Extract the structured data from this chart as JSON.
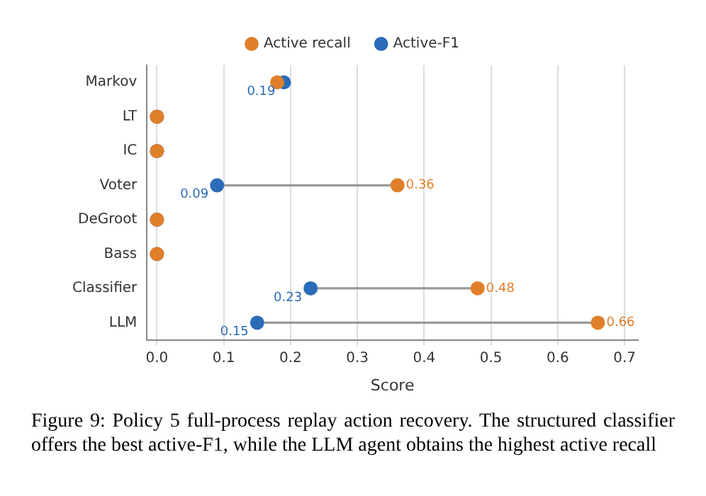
{
  "chart_data": {
    "type": "scatter",
    "orientation": "horizontal",
    "xlabel": "Score",
    "categories": [
      "Markov",
      "LT",
      "IC",
      "Voter",
      "DeGroot",
      "Bass",
      "Classifier",
      "LLM"
    ],
    "series": [
      {
        "name": "Active-F1",
        "color": "#2b6cb8",
        "values": [
          0.19,
          0,
          0,
          0.09,
          0,
          0,
          0.23,
          0.15
        ],
        "value_labels": [
          "0.19",
          null,
          null,
          "0.09",
          null,
          null,
          "0.23",
          "0.15"
        ]
      },
      {
        "name": "Active recall",
        "color": "#e07f2a",
        "values": [
          0.18,
          0,
          0,
          0.36,
          0,
          0,
          0.48,
          0.66
        ],
        "value_labels": [
          null,
          null,
          null,
          "0.36",
          null,
          null,
          "0.48",
          "0.66"
        ]
      }
    ],
    "xlim": [
      -0.015,
      0.72
    ],
    "xticks": [
      {
        "value": 0,
        "label": "0.0"
      },
      0.1,
      0.2,
      0.3,
      0.4,
      0.5,
      0.6,
      0.7
    ],
    "grid": "x",
    "legend": "top",
    "marker": "circle",
    "annotations": [
      "Figure 9: Policy 5 full-process replay action recovery. The structured classifier offers the best active-F1, while the LLM agent obtains the highest active recall"
    ]
  }
}
